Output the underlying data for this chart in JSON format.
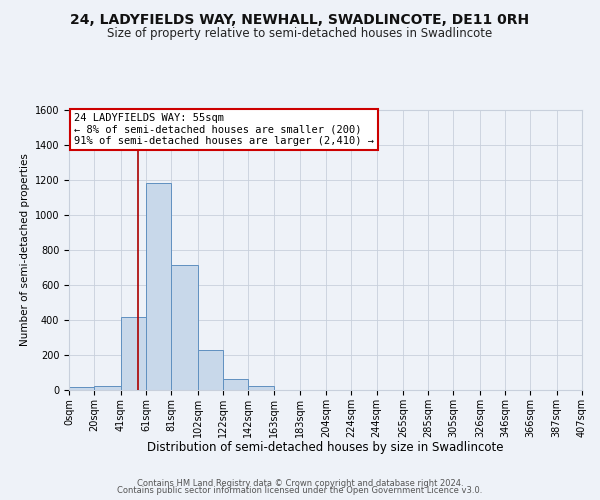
{
  "title": "24, LADYFIELDS WAY, NEWHALL, SWADLINCOTE, DE11 0RH",
  "subtitle": "Size of property relative to semi-detached houses in Swadlincote",
  "xlabel": "Distribution of semi-detached houses by size in Swadlincote",
  "ylabel": "Number of semi-detached properties",
  "bin_edges": [
    0,
    20,
    41,
    61,
    81,
    102,
    122,
    142,
    163,
    183,
    204,
    224,
    244,
    265,
    285,
    305,
    326,
    346,
    366,
    387,
    407
  ],
  "bar_heights": [
    15,
    25,
    420,
    1180,
    715,
    230,
    65,
    25,
    0,
    0,
    0,
    0,
    0,
    0,
    0,
    0,
    0,
    0,
    0,
    0
  ],
  "bar_color": "#c8d8ea",
  "bar_edge_color": "#6090c0",
  "grid_color": "#c8d0dc",
  "background_color": "#eef2f8",
  "vline_x": 55,
  "vline_color": "#aa0000",
  "annotation_line1": "24 LADYFIELDS WAY: 55sqm",
  "annotation_line2": "← 8% of semi-detached houses are smaller (200)",
  "annotation_line3": "91% of semi-detached houses are larger (2,410) →",
  "annotation_box_color": "#cc0000",
  "annotation_box_bg": "#ffffff",
  "ylim": [
    0,
    1600
  ],
  "yticks": [
    0,
    200,
    400,
    600,
    800,
    1000,
    1200,
    1400,
    1600
  ],
  "xtick_labels": [
    "0sqm",
    "20sqm",
    "41sqm",
    "61sqm",
    "81sqm",
    "102sqm",
    "122sqm",
    "142sqm",
    "163sqm",
    "183sqm",
    "204sqm",
    "224sqm",
    "244sqm",
    "265sqm",
    "285sqm",
    "305sqm",
    "326sqm",
    "346sqm",
    "366sqm",
    "387sqm",
    "407sqm"
  ],
  "footer_line1": "Contains HM Land Registry data © Crown copyright and database right 2024.",
  "footer_line2": "Contains public sector information licensed under the Open Government Licence v3.0.",
  "title_fontsize": 10,
  "subtitle_fontsize": 8.5,
  "xlabel_fontsize": 8.5,
  "ylabel_fontsize": 7.5,
  "tick_fontsize": 7,
  "annotation_fontsize": 7.5,
  "footer_fontsize": 6
}
